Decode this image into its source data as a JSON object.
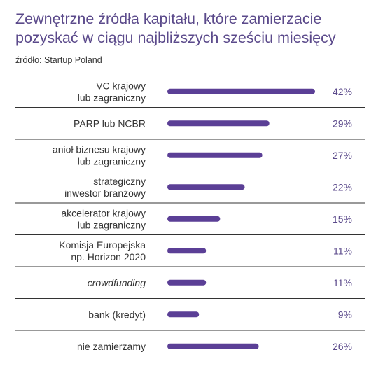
{
  "header": {
    "title": "Zewnętrzne źródła kapitału, które zamierzacie pozyskać w ciągu najbliższych sześciu miesięcy",
    "source": "źródło: Startup Poland"
  },
  "colors": {
    "bar": "#5b3f96",
    "title": "#5b4a8b",
    "separator": "#333333"
  },
  "chart_data": {
    "type": "bar",
    "orientation": "horizontal",
    "unit": "%",
    "categories": [
      [
        "VC krajowy",
        "lub zagraniczny"
      ],
      [
        "PARP lub NCBR"
      ],
      [
        "anioł biznesu krajowy",
        "lub zagraniczny"
      ],
      [
        "strategiczny",
        "inwestor branżowy"
      ],
      [
        "akcelerator krajowy",
        "lub zagraniczny"
      ],
      [
        "Komisja Europejska",
        "np. Horizon 2020"
      ],
      [
        "crowdfunding"
      ],
      [
        "bank (kredyt)"
      ],
      [
        "nie zamierzamy"
      ]
    ],
    "italic": [
      false,
      false,
      false,
      false,
      false,
      false,
      true,
      false,
      false
    ],
    "values": [
      42,
      29,
      27,
      22,
      15,
      11,
      11,
      9,
      26
    ],
    "value_labels": [
      "42%",
      "29%",
      "27%",
      "22%",
      "15%",
      "11%",
      "11%",
      "9%",
      "26%"
    ],
    "xlim": [
      0,
      42
    ],
    "grid": false,
    "legend": "none"
  }
}
